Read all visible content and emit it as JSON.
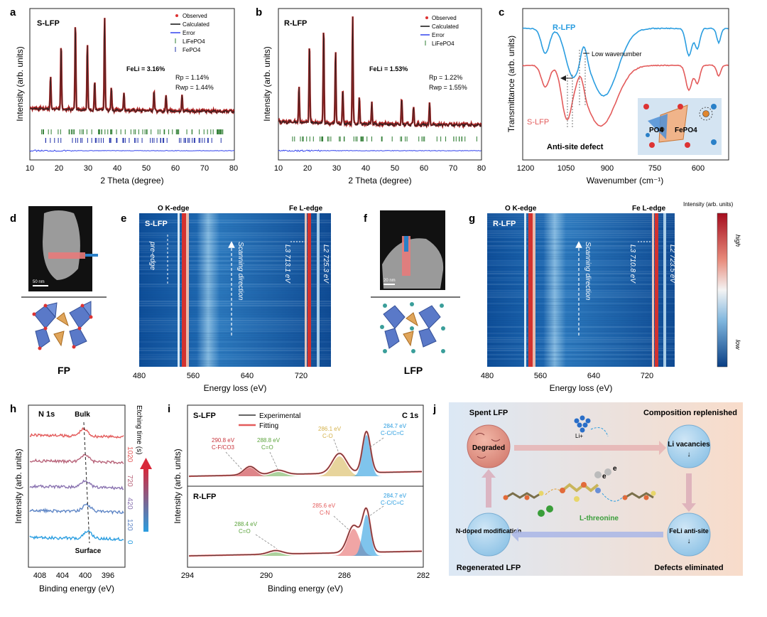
{
  "panels": {
    "a": {
      "letter": "a",
      "sample": "S-LFP",
      "legend": [
        "Observed",
        "Calculated",
        "Error",
        "LiFePO4",
        "FePO4"
      ],
      "fe_li": "FeLi = 3.16%",
      "rp": "Rp = 1.14%",
      "rwp": "Rwp = 1.44%",
      "xlabel": "2 Theta (degree)",
      "ylabel": "Intensity (arb. units)",
      "xticks": [
        "10",
        "20",
        "30",
        "40",
        "50",
        "60",
        "70",
        "80"
      ]
    },
    "b": {
      "letter": "b",
      "sample": "R-LFP",
      "legend": [
        "Observed",
        "Calculated",
        "Error",
        "LiFePO4"
      ],
      "fe_li": "FeLi = 1.53%",
      "rp": "Rp = 1.22%",
      "rwp": "Rwp = 1.55%",
      "xlabel": "2 Theta (degree)",
      "ylabel": "Intensity (arb. units)",
      "xticks": [
        "10",
        "20",
        "30",
        "40",
        "50",
        "60",
        "70",
        "80"
      ]
    },
    "c": {
      "letter": "c",
      "r_label": "R-LFP",
      "s_label": "S-LFP",
      "annotation": "Low wavenumber",
      "defect": "Anti-site defect",
      "inset_po4": "PO4",
      "inset_fepo4": "FePO4",
      "xlabel": "Wavenumber (cm⁻¹)",
      "ylabel": "Transmittance (arb. units)",
      "xticks": [
        "1200",
        "1050",
        "900",
        "750",
        "600"
      ]
    },
    "d": {
      "letter": "d",
      "scale": "50 nm",
      "caption": "FP"
    },
    "e": {
      "letter": "e",
      "sample": "S-LFP",
      "o_edge": "O K-edge",
      "fe_edge": "Fe L-edge",
      "pre_edge": "pre-edge",
      "scan": "Scanning direction",
      "l3": "L3 713.1 eV",
      "l2": "L2 725.3 eV",
      "xlabel": "Energy loss (eV)",
      "xticks": [
        "480",
        "560",
        "640",
        "720"
      ]
    },
    "f": {
      "letter": "f",
      "scale": "20 nm",
      "caption": "LFP"
    },
    "g": {
      "letter": "g",
      "sample": "R-LFP",
      "o_edge": "O K-edge",
      "fe_edge": "Fe L-edge",
      "scan": "Scanning direction",
      "l3": "L3 710.8 eV",
      "l2": "L2 723.5 eV",
      "xlabel": "Energy loss (eV)",
      "xticks": [
        "480",
        "560",
        "640",
        "720"
      ],
      "colorbar_title": "Intensity (arb. units)",
      "cb_high": "high",
      "cb_low": "low"
    },
    "h": {
      "letter": "h",
      "title": "N 1s",
      "bulk": "Bulk",
      "surface": "Surface",
      "etch_label": "Etching time (s)",
      "etch_times": [
        "1020",
        "720",
        "420",
        "120",
        "0"
      ],
      "xlabel": "Binding energy (eV)",
      "ylabel": "Intensity (arb. units)",
      "xticks": [
        "408",
        "404",
        "400",
        "396"
      ]
    },
    "i": {
      "letter": "i",
      "s_label": "S-LFP",
      "r_label": "R-LFP",
      "title": "C 1s",
      "legend": [
        "Experimental",
        "Fitting"
      ],
      "s_peaks": [
        "290.8 eV",
        "C-F/CO3",
        "288.8 eV",
        "C=O",
        "286.1 eV",
        "C-O",
        "284.7 eV",
        "C-C/C=C"
      ],
      "r_peaks": [
        "288.4 eV",
        "C=O",
        "285.6 eV",
        "C-N",
        "284.7 eV",
        "C-C/C=C"
      ],
      "xlabel": "Binding energy (eV)",
      "ylabel": "Intensity (arb. units)",
      "xticks": [
        "294",
        "290",
        "286",
        "282"
      ]
    },
    "j": {
      "letter": "j",
      "spent": "Spent LFP",
      "replenished": "Composition replenished",
      "degraded": "Degraded",
      "li_vacancies": "Li vacancies",
      "li_ion": "Li+",
      "threonine": "L-threonine",
      "ndoped": "N-doped modification",
      "feli": "FeLi anti-site",
      "regenerated": "Regenerated LFP",
      "defects": "Defects eliminated",
      "e1": "e",
      "e2": "e",
      "arrow_down": "↓"
    }
  },
  "chart_data": [
    {
      "type": "line",
      "panel": "a",
      "title": "S-LFP",
      "xlabel": "2 Theta (degree)",
      "ylabel": "Intensity (arb. units)",
      "xlim": [
        10,
        80
      ],
      "series": [
        {
          "name": "Observed",
          "peaks_x": [
            17.1,
            20.7,
            25.6,
            29.7,
            32.2,
            35.6,
            37.9,
            42.2,
            52.5,
            56.6,
            62.1
          ],
          "peaks_rel": [
            0.35,
            0.7,
            0.95,
            0.72,
            0.3,
            1.0,
            0.25,
            0.2,
            0.22,
            0.16,
            0.18
          ]
        }
      ]
    },
    {
      "type": "line",
      "panel": "b",
      "title": "R-LFP",
      "xlabel": "2 Theta (degree)",
      "ylabel": "Intensity (arb. units)",
      "xlim": [
        10,
        80
      ],
      "series": [
        {
          "name": "Observed",
          "peaks_x": [
            17.1,
            20.7,
            25.6,
            29.7,
            32.2,
            35.6,
            37.9,
            42.2,
            52.5,
            56.6,
            62.1
          ],
          "peaks_rel": [
            0.35,
            0.75,
            0.9,
            0.7,
            0.32,
            1.0,
            0.25,
            0.2,
            0.24,
            0.17,
            0.2
          ]
        }
      ]
    },
    {
      "type": "line",
      "panel": "c",
      "xlabel": "Wavenumber (cm⁻¹)",
      "ylabel": "Transmittance (arb. units)",
      "xlim": [
        1200,
        550
      ],
      "series": [
        {
          "name": "R-LFP",
          "dips_x": [
            1136,
            1050,
            1000,
            945,
            650,
            635,
            550
          ]
        },
        {
          "name": "S-LFP",
          "dips_x": [
            1136,
            1060,
            1000,
            940,
            650,
            635,
            550
          ]
        }
      ]
    },
    {
      "type": "line",
      "panel": "h",
      "title": "N 1s",
      "xlabel": "Binding energy (eV)",
      "ylabel": "Intensity (arb. units)",
      "xlim": [
        410,
        393
      ],
      "series": [
        {
          "name": "1020",
          "peak_x": 399.6
        },
        {
          "name": "720",
          "peak_x": 399.7
        },
        {
          "name": "420",
          "peak_x": 399.8
        },
        {
          "name": "120",
          "peak_x": 400.0
        },
        {
          "name": "0",
          "peak_x": 400.2
        }
      ]
    },
    {
      "type": "line",
      "panel": "i",
      "title": "C 1s",
      "xlabel": "Binding energy (eV)",
      "ylabel": "Intensity (arb. units)",
      "xlim": [
        294,
        282
      ],
      "series": [
        {
          "name": "S-LFP",
          "peaks_x": [
            290.8,
            288.8,
            286.1,
            284.7
          ]
        },
        {
          "name": "R-LFP",
          "peaks_x": [
            288.4,
            285.6,
            284.7
          ]
        }
      ]
    }
  ],
  "colors": {
    "obs": "#d33",
    "calc": "#111",
    "err": "#3344ee",
    "lfp_tick": "#2e7d32",
    "fp_tick": "#2233aa",
    "r_ftir": "#2a9de0",
    "s_ftir": "#e35b5b",
    "accent_blue": "#1e9ad6"
  }
}
